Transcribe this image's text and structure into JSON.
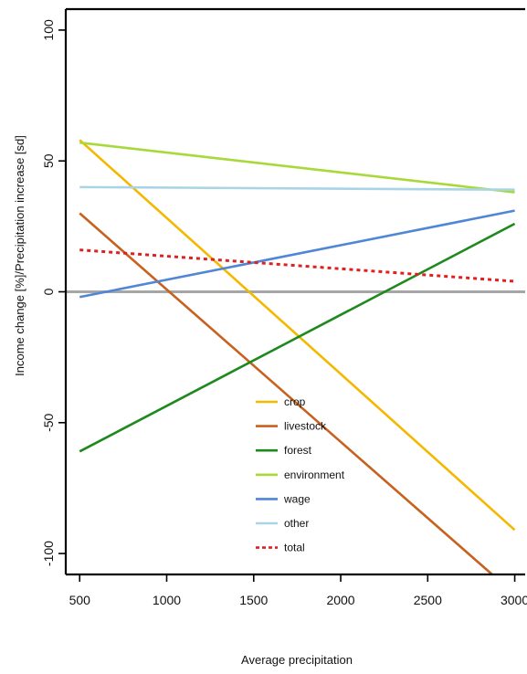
{
  "chart_data": {
    "type": "line",
    "title": "",
    "xlabel": "Average precipitation",
    "ylabel": "Income change [%]/Precipitation increase [sd]",
    "xlim": [
      420,
      3060
    ],
    "ylim": [
      -108,
      108
    ],
    "x_ticks": [
      500,
      1000,
      1500,
      2000,
      2500,
      3000
    ],
    "y_ticks": [
      -100,
      -50,
      0,
      50,
      100
    ],
    "legend_position": "bottom-center",
    "reference_line": {
      "y": 0,
      "color": "#a6a6a6"
    },
    "series": [
      {
        "name": "crop",
        "color": "#f5b800",
        "dashed": false,
        "x": [
          500,
          3000
        ],
        "y": [
          58,
          -91
        ]
      },
      {
        "name": "livestock",
        "color": "#c8611d",
        "dashed": false,
        "x": [
          500,
          2870
        ],
        "y": [
          30,
          -108
        ]
      },
      {
        "name": "forest",
        "color": "#1e8a1e",
        "dashed": false,
        "x": [
          500,
          3000
        ],
        "y": [
          -61,
          26
        ]
      },
      {
        "name": "environment",
        "color": "#a8d93a",
        "dashed": false,
        "x": [
          500,
          3000
        ],
        "y": [
          57,
          38
        ]
      },
      {
        "name": "wage",
        "color": "#4f86d8",
        "dashed": false,
        "x": [
          500,
          3000
        ],
        "y": [
          -2,
          31
        ]
      },
      {
        "name": "other",
        "color": "#a9d4e6",
        "dashed": false,
        "x": [
          500,
          3000
        ],
        "y": [
          40,
          39
        ]
      },
      {
        "name": "total",
        "color": "#e02020",
        "dashed": true,
        "x": [
          500,
          3000
        ],
        "y": [
          16,
          4
        ]
      }
    ]
  }
}
